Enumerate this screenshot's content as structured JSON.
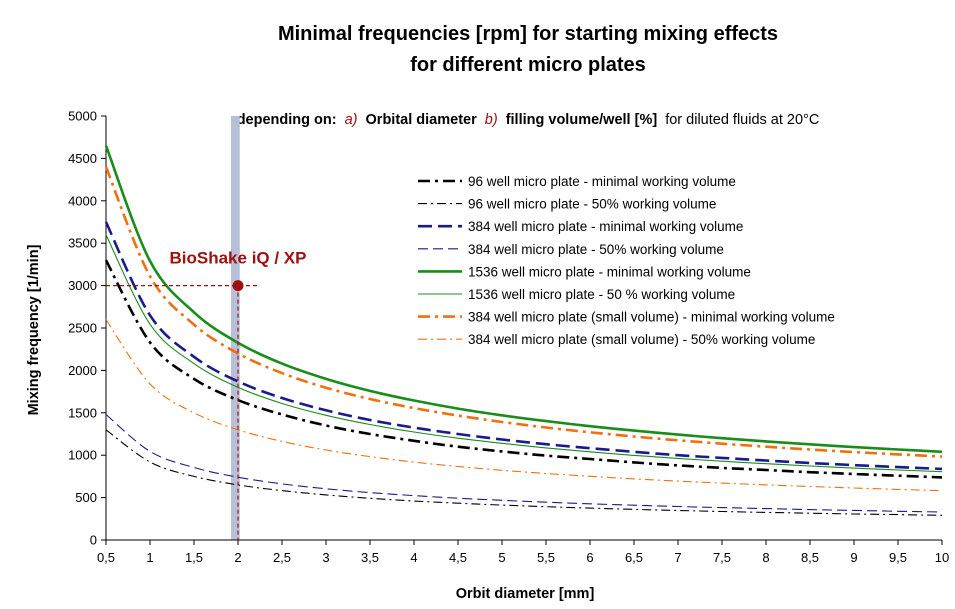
{
  "chart_data": {
    "type": "line",
    "title_line1": "Minimal frequencies [rpm] for starting mixing effects",
    "title_line2": "for different micro plates",
    "subtitle": {
      "lead": "depending on:",
      "a_mark": "a)",
      "a_text": "Orbital diameter",
      "b_mark": "b)",
      "b_text": "filling volume/well [%]",
      "tail": "for diluted fluids at 20°C"
    },
    "xlabel": "Orbit diameter [mm]",
    "ylabel": "Mixing frequency [1/min]",
    "xlim": [
      0.5,
      10
    ],
    "ylim": [
      0,
      5000
    ],
    "x_ticks": [
      0.5,
      1,
      1.5,
      2,
      2.5,
      3,
      3.5,
      4,
      4.5,
      5,
      5.5,
      6,
      6.5,
      7,
      7.5,
      8,
      8.5,
      9,
      9.5,
      10
    ],
    "x_tick_labels": [
      "0,5",
      "1",
      "1,5",
      "2",
      "2,5",
      "3",
      "3,5",
      "4",
      "4,5",
      "5",
      "5,5",
      "6",
      "6,5",
      "7",
      "7,5",
      "8",
      "8,5",
      "9",
      "9,5",
      "10"
    ],
    "y_ticks": [
      0,
      500,
      1000,
      1500,
      2000,
      2500,
      3000,
      3500,
      4000,
      4500,
      5000
    ],
    "y_tick_labels": [
      "0",
      "500",
      "1000",
      "1500",
      "2000",
      "2500",
      "3000",
      "3500",
      "4000",
      "4500",
      "5000"
    ],
    "grid": false,
    "legend_position": "right",
    "x": [
      0.5,
      1,
      1.5,
      2,
      2.5,
      3,
      3.5,
      4,
      4.5,
      5,
      5.5,
      6,
      6.5,
      7,
      7.5,
      8,
      8.5,
      9,
      9.5,
      10
    ],
    "series": [
      {
        "name": "96 well micro plate - minimal working volume",
        "color": "#000000",
        "dash": "dashdot",
        "width": 2.6,
        "values": [
          3300,
          2330,
          1900,
          1650,
          1480,
          1350,
          1250,
          1170,
          1100,
          1045,
          995,
          955,
          915,
          880,
          850,
          825,
          800,
          778,
          758,
          738
        ]
      },
      {
        "name": "96 well micro plate - 50% working volume",
        "color": "#000000",
        "dash": "dashdot",
        "width": 1.1,
        "values": [
          1300,
          920,
          750,
          650,
          582,
          532,
          492,
          460,
          434,
          412,
          393,
          376,
          361,
          348,
          336,
          325,
          316,
          307,
          299,
          291
        ]
      },
      {
        "name": "384 well micro plate - minimal working volume",
        "color": "#1a1a8c",
        "dash": "dash",
        "width": 2.6,
        "values": [
          3750,
          2650,
          2160,
          1870,
          1675,
          1530,
          1415,
          1325,
          1250,
          1185,
          1130,
          1082,
          1040,
          1000,
          968,
          937,
          908,
          883,
          860,
          838
        ]
      },
      {
        "name": "384 well micro plate - 50% working volume",
        "color": "#1a1a8c",
        "dash": "dash",
        "width": 1.1,
        "values": [
          1480,
          1045,
          855,
          740,
          662,
          604,
          559,
          523,
          493,
          468,
          446,
          427,
          410,
          395,
          382,
          370,
          359,
          349,
          339,
          330
        ]
      },
      {
        "name": "1536 well micro plate - minimal working volume",
        "color": "#1a8c1a",
        "dash": "solid",
        "width": 2.6,
        "values": [
          4650,
          3290,
          2685,
          2325,
          2080,
          1900,
          1758,
          1645,
          1550,
          1470,
          1402,
          1342,
          1290,
          1243,
          1201,
          1163,
          1128,
          1096,
          1067,
          1040
        ]
      },
      {
        "name": "1536 well micro plate - 50 % working volume",
        "color": "#1a8c1a",
        "dash": "solid",
        "width": 1.1,
        "values": [
          3600,
          2545,
          2080,
          1800,
          1610,
          1470,
          1362,
          1274,
          1200,
          1140,
          1086,
          1040,
          998,
          962,
          929,
          900,
          873,
          848,
          826,
          805
        ]
      },
      {
        "name": "384 well micro plate (small volume) - minimal working volume",
        "color": "#f07010",
        "dash": "dashdot",
        "width": 2.6,
        "values": [
          4400,
          3110,
          2540,
          2200,
          1968,
          1796,
          1663,
          1556,
          1467,
          1392,
          1327,
          1270,
          1220,
          1176,
          1136,
          1100,
          1067,
          1037,
          1010,
          984
        ]
      },
      {
        "name": "384 well micro plate (small volume) - 50% working volume",
        "color": "#f07010",
        "dash": "dashdot",
        "width": 1.1,
        "values": [
          2600,
          1840,
          1500,
          1300,
          1163,
          1061,
          983,
          919,
          867,
          822,
          784,
          751,
          721,
          695,
          671,
          650,
          631,
          613,
          597,
          581
        ]
      }
    ],
    "annotation": {
      "label": "BioShake iQ / XP",
      "x": 2,
      "y": 3000,
      "band_x_range": [
        1.92,
        2.02
      ],
      "color": "#a01010",
      "band_color": "#b8c0d8"
    }
  }
}
